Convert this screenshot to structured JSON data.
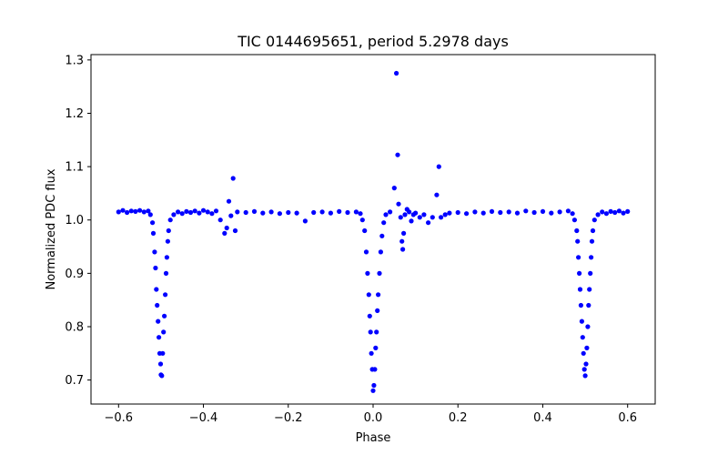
{
  "chart_data": {
    "type": "scatter",
    "title": "TIC 0144695651, period 5.2978 days",
    "xlabel": "Phase",
    "ylabel": "Normalized PDC flux",
    "xlim": [
      -0.665,
      0.665
    ],
    "ylim": [
      0.655,
      1.31
    ],
    "xticks": [
      -0.6,
      -0.4,
      -0.2,
      0.0,
      0.2,
      0.4,
      0.6
    ],
    "xtick_labels": [
      "−0.6",
      "−0.4",
      "−0.2",
      "0.0",
      "0.2",
      "0.4",
      "0.6"
    ],
    "yticks": [
      0.7,
      0.8,
      0.9,
      1.0,
      1.1,
      1.2,
      1.3
    ],
    "ytick_labels": [
      "0.7",
      "0.8",
      "0.9",
      "1.0",
      "1.1",
      "1.2",
      "1.3"
    ],
    "grid": false,
    "marker_color": "#0000ff",
    "series": [
      {
        "points": [
          [
            -0.6,
            1.015
          ],
          [
            -0.59,
            1.018
          ],
          [
            -0.58,
            1.014
          ],
          [
            -0.57,
            1.017
          ],
          [
            -0.56,
            1.016
          ],
          [
            -0.55,
            1.018
          ],
          [
            -0.54,
            1.015
          ],
          [
            -0.53,
            1.017
          ],
          [
            -0.525,
            1.01
          ],
          [
            -0.52,
            0.995
          ],
          [
            -0.518,
            0.975
          ],
          [
            -0.515,
            0.94
          ],
          [
            -0.513,
            0.91
          ],
          [
            -0.511,
            0.87
          ],
          [
            -0.509,
            0.84
          ],
          [
            -0.507,
            0.81
          ],
          [
            -0.505,
            0.78
          ],
          [
            -0.503,
            0.75
          ],
          [
            -0.501,
            0.73
          ],
          [
            -0.5,
            0.71
          ],
          [
            -0.498,
            0.708
          ],
          [
            -0.496,
            0.75
          ],
          [
            -0.494,
            0.79
          ],
          [
            -0.492,
            0.82
          ],
          [
            -0.49,
            0.86
          ],
          [
            -0.488,
            0.9
          ],
          [
            -0.486,
            0.93
          ],
          [
            -0.484,
            0.96
          ],
          [
            -0.482,
            0.98
          ],
          [
            -0.478,
            1.0
          ],
          [
            -0.47,
            1.01
          ],
          [
            -0.46,
            1.015
          ],
          [
            -0.45,
            1.012
          ],
          [
            -0.44,
            1.016
          ],
          [
            -0.43,
            1.014
          ],
          [
            -0.42,
            1.017
          ],
          [
            -0.41,
            1.013
          ],
          [
            -0.4,
            1.018
          ],
          [
            -0.39,
            1.015
          ],
          [
            -0.38,
            1.012
          ],
          [
            -0.37,
            1.017
          ],
          [
            -0.36,
            1.0
          ],
          [
            -0.35,
            0.975
          ],
          [
            -0.345,
            0.985
          ],
          [
            -0.34,
            1.035
          ],
          [
            -0.335,
            1.008
          ],
          [
            -0.33,
            1.078
          ],
          [
            -0.325,
            0.98
          ],
          [
            -0.32,
            1.015
          ],
          [
            -0.3,
            1.014
          ],
          [
            -0.28,
            1.016
          ],
          [
            -0.26,
            1.013
          ],
          [
            -0.24,
            1.015
          ],
          [
            -0.22,
            1.012
          ],
          [
            -0.2,
            1.014
          ],
          [
            -0.18,
            1.013
          ],
          [
            -0.16,
            0.998
          ],
          [
            -0.14,
            1.014
          ],
          [
            -0.12,
            1.015
          ],
          [
            -0.1,
            1.013
          ],
          [
            -0.08,
            1.016
          ],
          [
            -0.06,
            1.014
          ],
          [
            -0.04,
            1.015
          ],
          [
            -0.03,
            1.012
          ],
          [
            -0.025,
            1.0
          ],
          [
            -0.02,
            0.98
          ],
          [
            -0.016,
            0.94
          ],
          [
            -0.013,
            0.9
          ],
          [
            -0.01,
            0.86
          ],
          [
            -0.008,
            0.82
          ],
          [
            -0.006,
            0.79
          ],
          [
            -0.004,
            0.75
          ],
          [
            -0.002,
            0.72
          ],
          [
            0.0,
            0.68
          ],
          [
            0.002,
            0.69
          ],
          [
            0.004,
            0.72
          ],
          [
            0.006,
            0.76
          ],
          [
            0.008,
            0.79
          ],
          [
            0.01,
            0.83
          ],
          [
            0.012,
            0.86
          ],
          [
            0.015,
            0.9
          ],
          [
            0.018,
            0.94
          ],
          [
            0.021,
            0.97
          ],
          [
            0.025,
            0.995
          ],
          [
            0.03,
            1.01
          ],
          [
            0.04,
            1.015
          ],
          [
            0.05,
            1.06
          ],
          [
            0.055,
            1.275
          ],
          [
            0.058,
            1.122
          ],
          [
            0.06,
            1.03
          ],
          [
            0.065,
            1.005
          ],
          [
            0.068,
            0.96
          ],
          [
            0.07,
            0.945
          ],
          [
            0.072,
            0.975
          ],
          [
            0.075,
            1.01
          ],
          [
            0.08,
            1.02
          ],
          [
            0.085,
            1.015
          ],
          [
            0.09,
            0.998
          ],
          [
            0.095,
            1.01
          ],
          [
            0.1,
            1.013
          ],
          [
            0.11,
            1.005
          ],
          [
            0.12,
            1.01
          ],
          [
            0.13,
            0.995
          ],
          [
            0.14,
            1.005
          ],
          [
            0.15,
            1.047
          ],
          [
            0.155,
            1.1
          ],
          [
            0.16,
            1.005
          ],
          [
            0.17,
            1.01
          ],
          [
            0.18,
            1.013
          ],
          [
            0.2,
            1.014
          ],
          [
            0.22,
            1.012
          ],
          [
            0.24,
            1.015
          ],
          [
            0.26,
            1.013
          ],
          [
            0.28,
            1.016
          ],
          [
            0.3,
            1.014
          ],
          [
            0.32,
            1.015
          ],
          [
            0.34,
            1.013
          ],
          [
            0.36,
            1.017
          ],
          [
            0.38,
            1.014
          ],
          [
            0.4,
            1.016
          ],
          [
            0.42,
            1.013
          ],
          [
            0.44,
            1.015
          ],
          [
            0.46,
            1.017
          ],
          [
            0.47,
            1.012
          ],
          [
            0.475,
            1.0
          ],
          [
            0.48,
            0.98
          ],
          [
            0.482,
            0.96
          ],
          [
            0.484,
            0.93
          ],
          [
            0.486,
            0.9
          ],
          [
            0.488,
            0.87
          ],
          [
            0.49,
            0.84
          ],
          [
            0.492,
            0.81
          ],
          [
            0.494,
            0.78
          ],
          [
            0.496,
            0.75
          ],
          [
            0.498,
            0.72
          ],
          [
            0.5,
            0.708
          ],
          [
            0.502,
            0.73
          ],
          [
            0.504,
            0.76
          ],
          [
            0.506,
            0.8
          ],
          [
            0.508,
            0.84
          ],
          [
            0.51,
            0.87
          ],
          [
            0.512,
            0.9
          ],
          [
            0.514,
            0.93
          ],
          [
            0.516,
            0.96
          ],
          [
            0.518,
            0.98
          ],
          [
            0.522,
            1.0
          ],
          [
            0.53,
            1.01
          ],
          [
            0.54,
            1.015
          ],
          [
            0.55,
            1.012
          ],
          [
            0.56,
            1.016
          ],
          [
            0.57,
            1.014
          ],
          [
            0.58,
            1.017
          ],
          [
            0.59,
            1.013
          ],
          [
            0.6,
            1.016
          ]
        ]
      }
    ]
  }
}
